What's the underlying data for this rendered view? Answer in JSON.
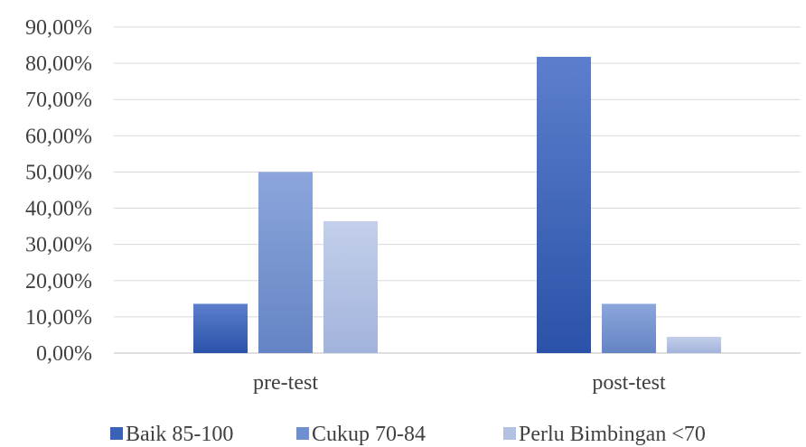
{
  "chart_data": {
    "type": "bar",
    "title": "",
    "xlabel": "",
    "ylabel": "",
    "categories": [
      "pre-test",
      "post-test"
    ],
    "series": [
      {
        "name": "Baik 85-100",
        "values": [
          13.6,
          81.8
        ],
        "color": "#3a62b6"
      },
      {
        "name": "Cukup 70-84",
        "values": [
          50.0,
          13.6
        ],
        "color": "#6f8fce"
      },
      {
        "name": "Perlu Bimbingan <70",
        "values": [
          36.4,
          4.5
        ],
        "color": "#b3c1e3"
      }
    ],
    "ylim": [
      0,
      90
    ],
    "yticks": [
      0,
      10,
      20,
      30,
      40,
      50,
      60,
      70,
      80,
      90
    ],
    "ytick_labels": [
      "0,00%",
      "10,00%",
      "20,00%",
      "30,00%",
      "40,00%",
      "50,00%",
      "60,00%",
      "70,00%",
      "80,00%",
      "90,00%"
    ],
    "grid": true,
    "legend_position": "bottom"
  }
}
